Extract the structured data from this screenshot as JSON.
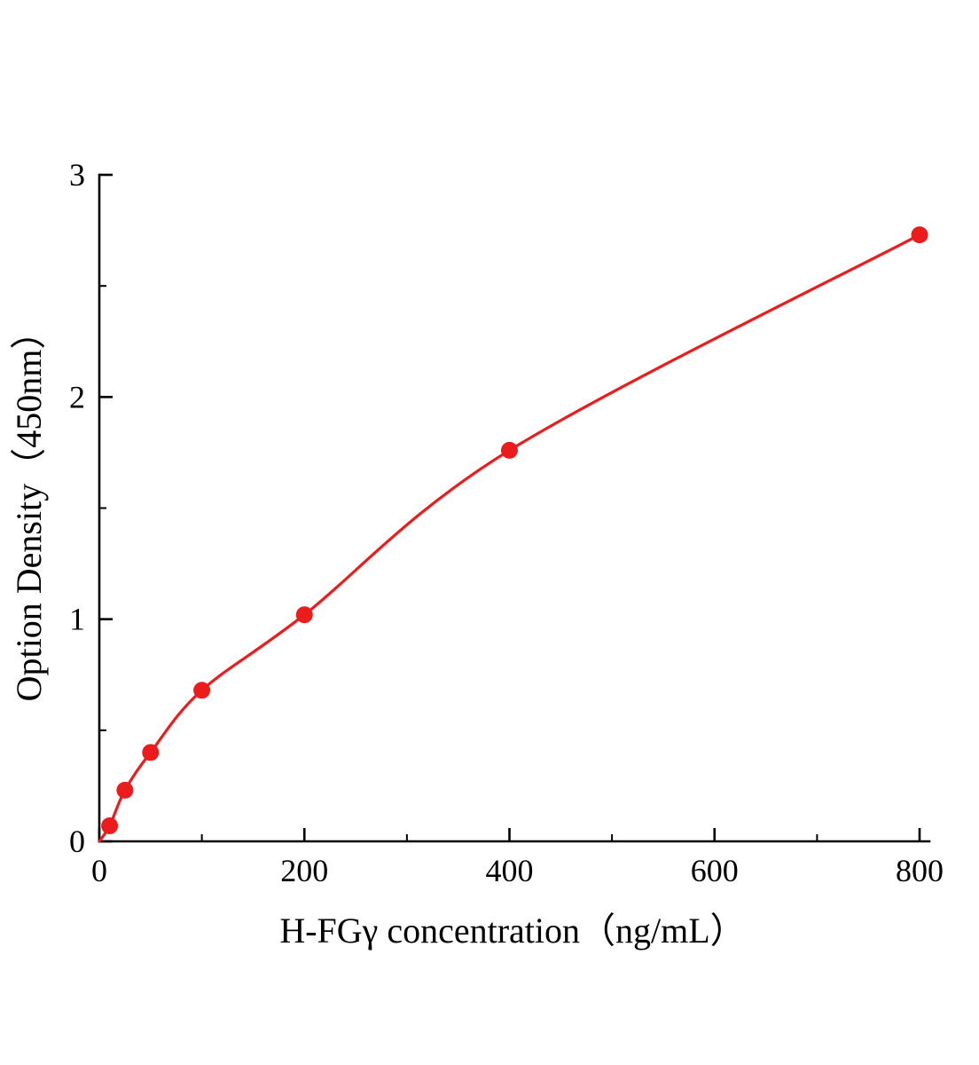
{
  "chart_data": {
    "type": "scatter",
    "title": "",
    "xlabel": "H-FGγ concentration（ng/mL）",
    "ylabel": "Option Density（450nm）",
    "x": [
      10,
      25,
      50,
      100,
      200,
      400,
      800
    ],
    "y": [
      0.07,
      0.23,
      0.4,
      0.68,
      1.02,
      1.76,
      2.73
    ],
    "fit_curve_start": [
      0,
      0
    ],
    "xlim": [
      0,
      800
    ],
    "ylim": [
      0,
      3
    ],
    "x_ticks": [
      0,
      200,
      400,
      600,
      800
    ],
    "y_ticks": [
      0,
      1,
      2,
      3
    ],
    "x_minor_ticks": [
      100,
      300,
      500,
      700
    ],
    "y_minor_ticks": [
      0.5,
      1.5,
      2.5
    ],
    "grid": "off",
    "legend": "none",
    "marker_color": "#ed1c1c",
    "line_color": "#ed1c1c",
    "axis_color": "#000000",
    "background_color": "#ffffff"
  }
}
